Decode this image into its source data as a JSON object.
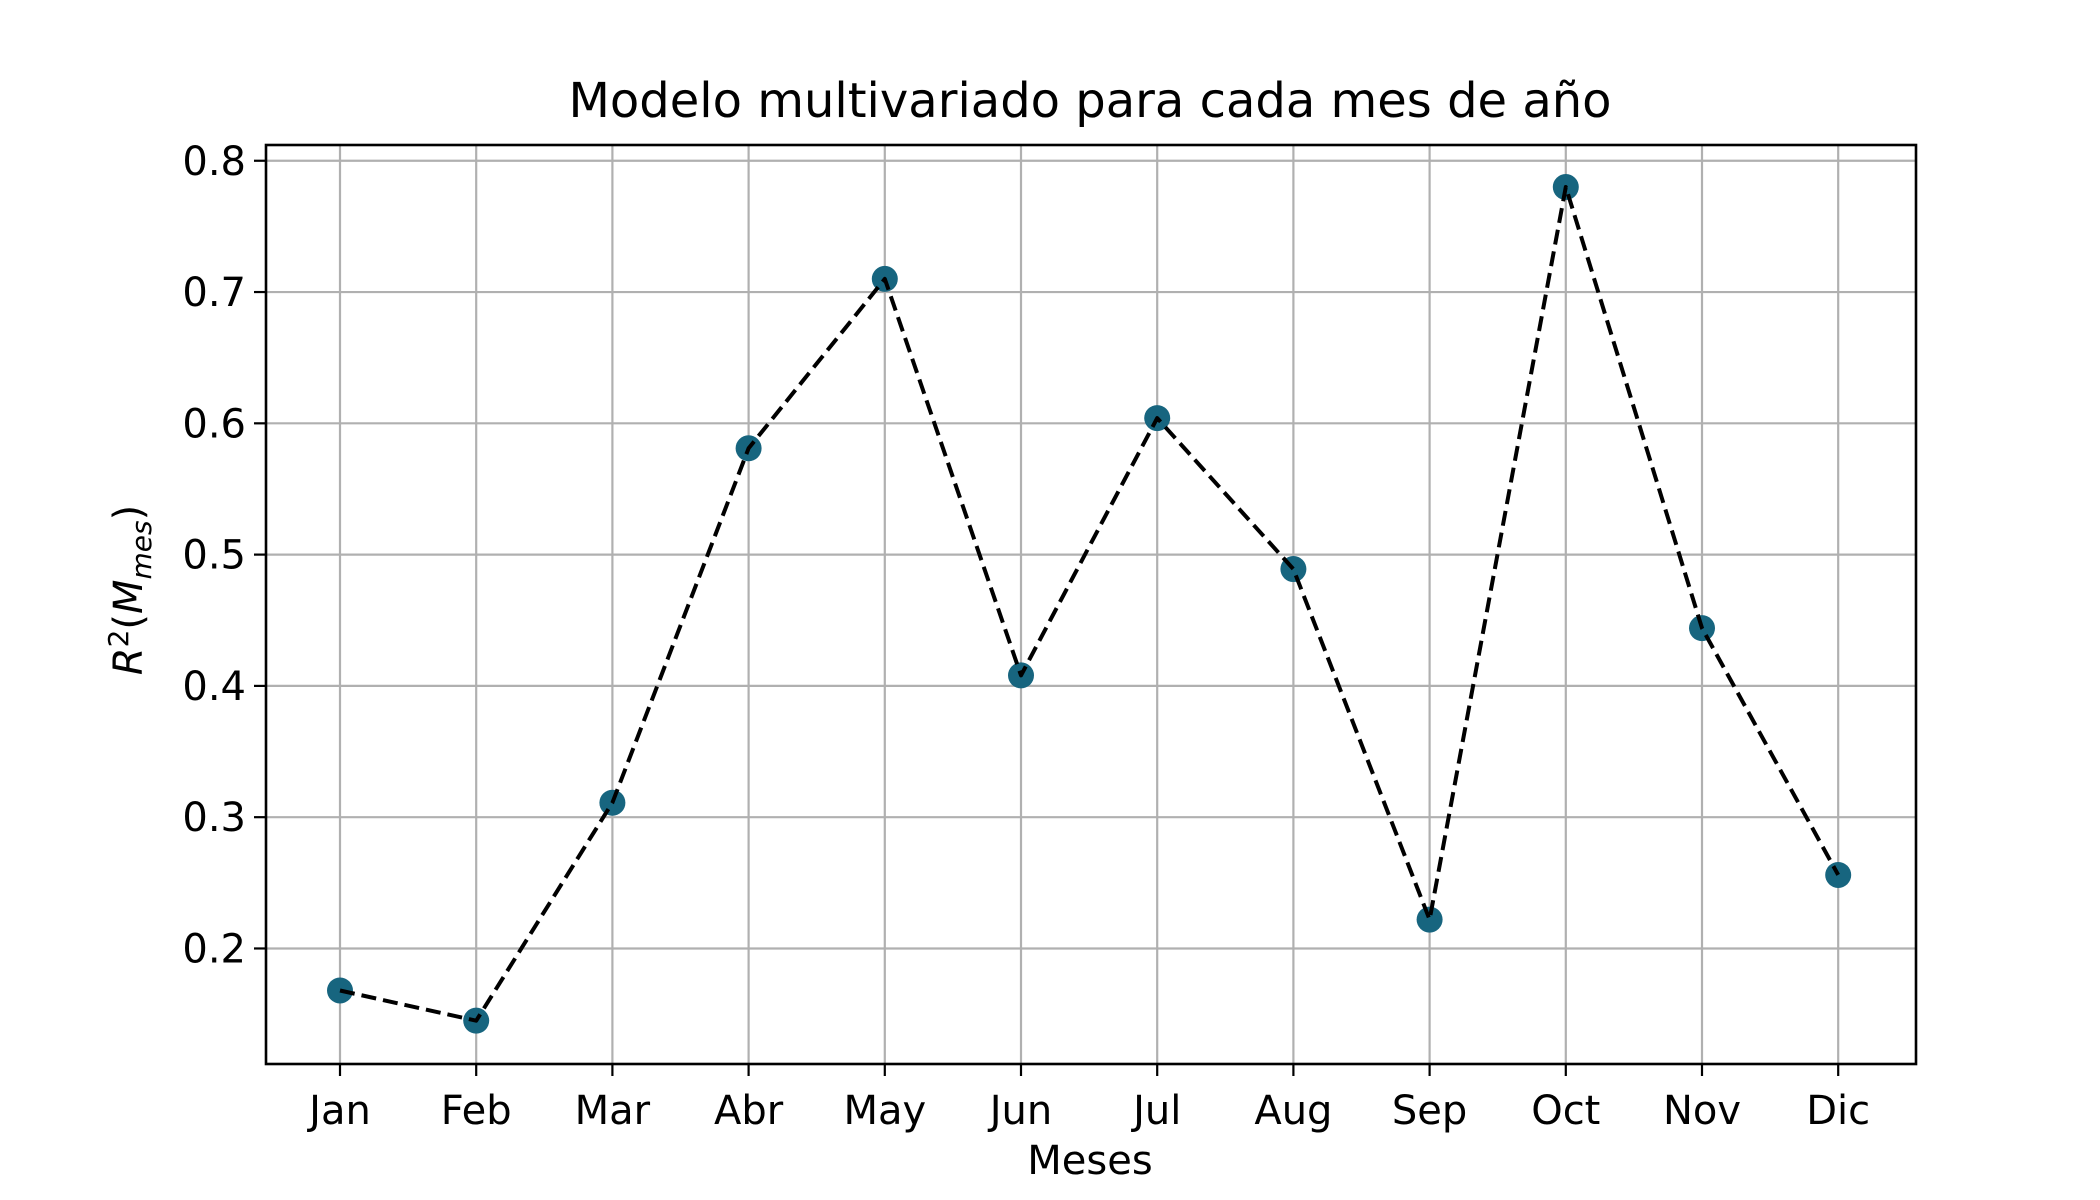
{
  "chart_data": {
    "type": "line",
    "title": "Modelo multivariado para cada mes de año",
    "xlabel": "Meses",
    "ylabel": {
      "base": "R",
      "sup": "2",
      "open": "(",
      "m": "M",
      "sub": "mes",
      "close": ")"
    },
    "categories": [
      "Jan",
      "Feb",
      "Mar",
      "Abr",
      "May",
      "Jun",
      "Jul",
      "Aug",
      "Sep",
      "Oct",
      "Nov",
      "Dic"
    ],
    "series": [
      {
        "values": [
          0.168,
          0.145,
          0.311,
          0.581,
          0.71,
          0.408,
          0.604,
          0.489,
          0.222,
          0.78,
          0.444,
          0.256
        ],
        "marker_color": "#17657f",
        "line_color": "#000000",
        "line_style": "dashed"
      }
    ],
    "ylim": [
      0.112,
      0.812
    ],
    "yticks": [
      0.2,
      0.3,
      0.4,
      0.5,
      0.6,
      0.7,
      0.8
    ],
    "ytick_labels": [
      "0.2",
      "0.3",
      "0.4",
      "0.5",
      "0.6",
      "0.7",
      "0.8"
    ],
    "grid": true,
    "grid_color": "#b0b0b0"
  }
}
